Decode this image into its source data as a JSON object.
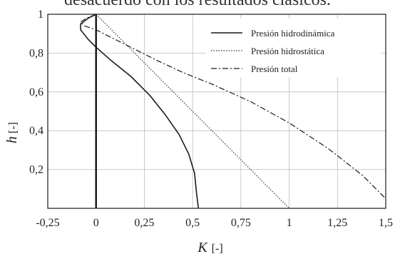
{
  "caption": "desacuerdo con los resultados clásicos.",
  "chart_data": {
    "type": "line",
    "xlabel": "K",
    "xunit": "[-]",
    "ylabel": "h",
    "yunit": "[-]",
    "xlim": [
      -0.25,
      1.5
    ],
    "ylim": [
      0,
      1
    ],
    "xticks": [
      -0.25,
      0,
      0.25,
      0.5,
      0.75,
      1,
      1.25,
      1.5
    ],
    "xtick_labels": [
      "-0,25",
      "0",
      "0,25",
      "0,5",
      "0,75",
      "1",
      "1,25",
      "1,5"
    ],
    "yticks": [
      0.2,
      0.4,
      0.6,
      0.8,
      1
    ],
    "ytick_labels": [
      "0,2",
      "0,4",
      "0,6",
      "0,8",
      "1"
    ],
    "grid": true,
    "legend_position": "top-right",
    "series": [
      {
        "name": "Presión hidrodinámica",
        "style": "solid",
        "color": "#1a1a1a",
        "x": [
          0.0,
          -0.04,
          -0.08,
          -0.08,
          -0.04,
          0.0,
          0.08,
          0.18,
          0.28,
          0.36,
          0.43,
          0.48,
          0.51,
          0.52,
          0.53
        ],
        "y": [
          1.0,
          0.98,
          0.95,
          0.92,
          0.87,
          0.83,
          0.76,
          0.68,
          0.58,
          0.48,
          0.38,
          0.28,
          0.18,
          0.08,
          0.0
        ]
      },
      {
        "name": "Presión hidrostática",
        "style": "dotted",
        "color": "#555555",
        "x": [
          0.0,
          0.25,
          0.5,
          0.75,
          1.0
        ],
        "y": [
          1.0,
          0.75,
          0.5,
          0.25,
          0.0
        ]
      },
      {
        "name": "Presión total",
        "style": "dashdot",
        "color": "#1a1a1a",
        "x": [
          0.0,
          -0.05,
          -0.08,
          -0.06,
          0.0,
          0.1,
          0.2,
          0.32,
          0.45,
          0.6,
          0.8,
          1.0,
          1.2,
          1.38,
          1.5
        ],
        "y": [
          1.0,
          0.98,
          0.96,
          0.94,
          0.92,
          0.87,
          0.82,
          0.76,
          0.7,
          0.64,
          0.55,
          0.44,
          0.31,
          0.17,
          0.05
        ]
      }
    ]
  }
}
